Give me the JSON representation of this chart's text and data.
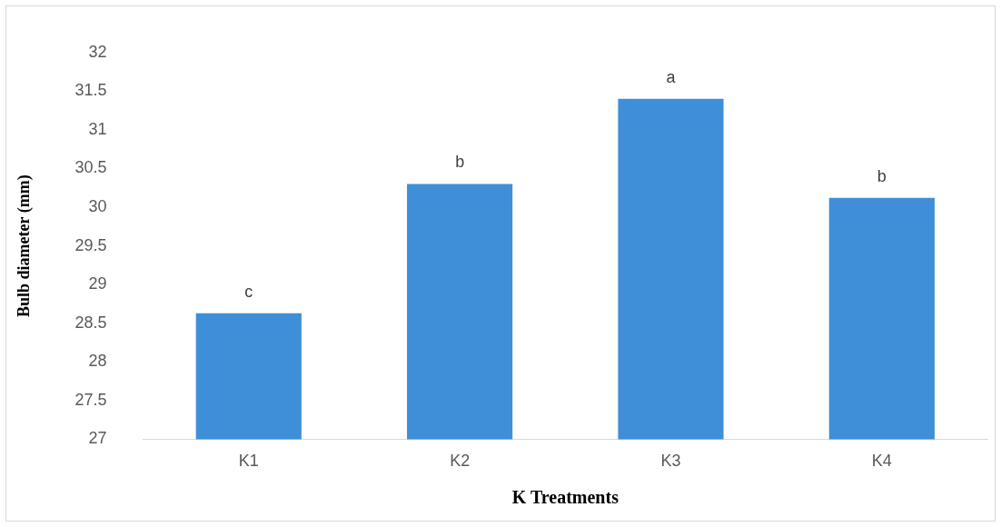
{
  "chart_data": {
    "type": "bar",
    "xlabel": "K Treatments",
    "ylabel": "Bulb diameter (mm)",
    "categories": [
      "K1",
      "K2",
      "K3",
      "K4"
    ],
    "values": [
      28.63,
      30.3,
      31.4,
      30.12
    ],
    "color": "#3f8fd8",
    "ylim": [
      27,
      32
    ],
    "yticks": [
      27,
      27.5,
      28,
      28.5,
      29,
      29.5,
      30,
      30.5,
      31,
      31.5,
      32
    ],
    "grid": false,
    "legend": false,
    "annotations": [
      {
        "text": "c",
        "x": "K1",
        "y": 28.63
      },
      {
        "text": "b",
        "x": "K2",
        "y": 30.3
      },
      {
        "text": "a",
        "x": "K3",
        "y": 31.4
      },
      {
        "text": "b",
        "x": "K4",
        "y": 30.12
      }
    ]
  }
}
